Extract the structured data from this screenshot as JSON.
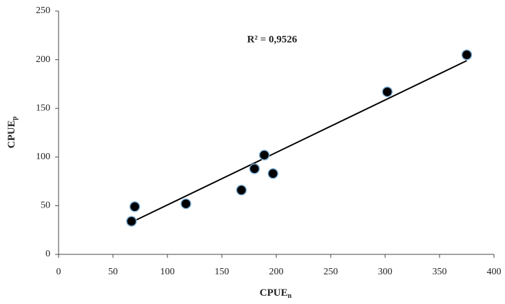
{
  "chart_data": {
    "type": "scatter",
    "annotation": "R² = 0,9526",
    "x_label": "CPUE",
    "x_label_sub": "n",
    "y_label": "CPUE",
    "y_label_sub": "p",
    "series": [
      {
        "color": "#000000",
        "x": [
          67,
          70,
          117,
          168,
          180,
          189,
          197,
          302,
          375
        ],
        "values": [
          34,
          49,
          52,
          66,
          88,
          102,
          83,
          167,
          205
        ]
      }
    ],
    "trendline": {
      "x": [
        67,
        375
      ],
      "values": [
        33,
        199
      ],
      "color": "#000000"
    },
    "xlim": [
      0,
      400
    ],
    "xticks": [
      0,
      50,
      100,
      150,
      200,
      250,
      300,
      350,
      400
    ],
    "ylim": [
      0,
      250
    ],
    "yticks": [
      0,
      50,
      100,
      150,
      200,
      250
    ],
    "grid": false
  }
}
